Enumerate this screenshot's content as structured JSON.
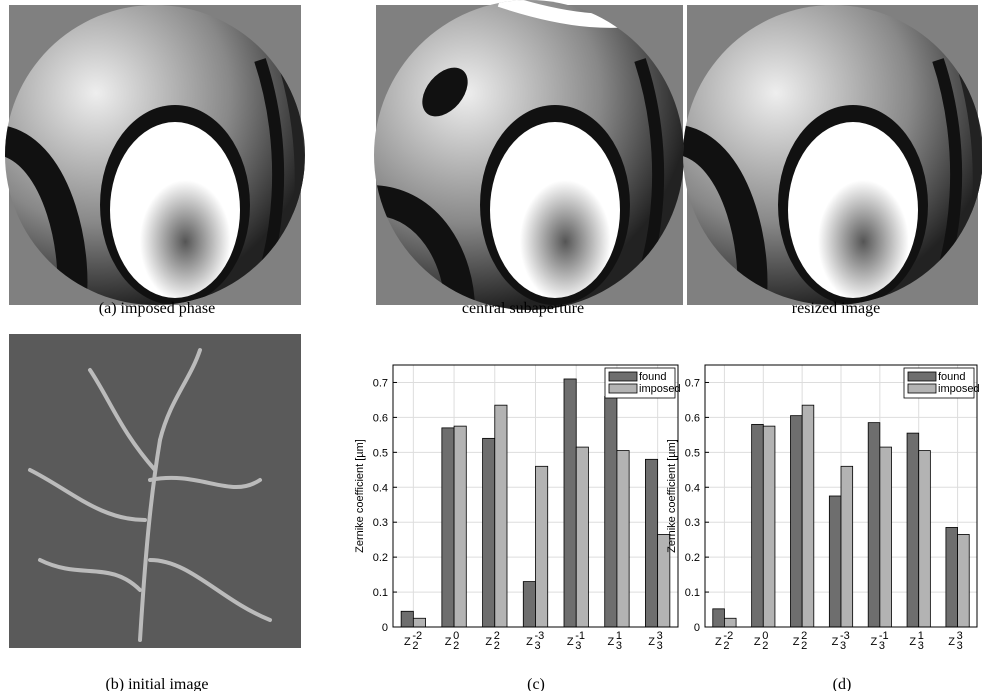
{
  "captions": {
    "a": "(a) imposed phase",
    "central": "central subaperture",
    "resized": "resized image",
    "b": "(b) initial image",
    "c": "(c)",
    "d": "(d)"
  },
  "chart_data": [
    {
      "type": "bar",
      "ylabel": "Zernike coefficient [µm]",
      "categories": [
        {
          "base": "Z",
          "sub": "2",
          "sup": "-2"
        },
        {
          "base": "Z",
          "sub": "2",
          "sup": "0"
        },
        {
          "base": "Z",
          "sub": "2",
          "sup": "2"
        },
        {
          "base": "Z",
          "sub": "3",
          "sup": "-3"
        },
        {
          "base": "Z",
          "sub": "3",
          "sup": "-1"
        },
        {
          "base": "Z",
          "sub": "3",
          "sup": "1"
        },
        {
          "base": "Z",
          "sub": "3",
          "sup": "3"
        }
      ],
      "series": [
        {
          "name": "found",
          "color": "#6e6e6e",
          "values": [
            0.045,
            0.57,
            0.54,
            0.13,
            0.71,
            0.66,
            0.48
          ]
        },
        {
          "name": "imposed",
          "color": "#b3b3b3",
          "values": [
            0.025,
            0.575,
            0.635,
            0.46,
            0.515,
            0.505,
            0.265
          ]
        }
      ],
      "ylim": [
        0,
        0.75
      ],
      "yticks": [
        0,
        0.1,
        0.2,
        0.3,
        0.4,
        0.5,
        0.6,
        0.7
      ],
      "grid": true,
      "legend": "top-right"
    },
    {
      "type": "bar",
      "ylabel": "Zernike coefficient [µm]",
      "categories": [
        {
          "base": "Z",
          "sub": "2",
          "sup": "-2"
        },
        {
          "base": "Z",
          "sub": "2",
          "sup": "0"
        },
        {
          "base": "Z",
          "sub": "2",
          "sup": "2"
        },
        {
          "base": "Z",
          "sub": "3",
          "sup": "-3"
        },
        {
          "base": "Z",
          "sub": "3",
          "sup": "-1"
        },
        {
          "base": "Z",
          "sub": "3",
          "sup": "1"
        },
        {
          "base": "Z",
          "sub": "3",
          "sup": "3"
        }
      ],
      "series": [
        {
          "name": "found",
          "color": "#6e6e6e",
          "values": [
            0.052,
            0.58,
            0.605,
            0.375,
            0.585,
            0.555,
            0.285
          ]
        },
        {
          "name": "imposed",
          "color": "#b3b3b3",
          "values": [
            0.025,
            0.575,
            0.635,
            0.46,
            0.515,
            0.505,
            0.265
          ]
        }
      ],
      "ylim": [
        0,
        0.75
      ],
      "yticks": [
        0,
        0.1,
        0.2,
        0.3,
        0.4,
        0.5,
        0.6,
        0.7
      ],
      "grid": true,
      "legend": "top-right"
    }
  ]
}
